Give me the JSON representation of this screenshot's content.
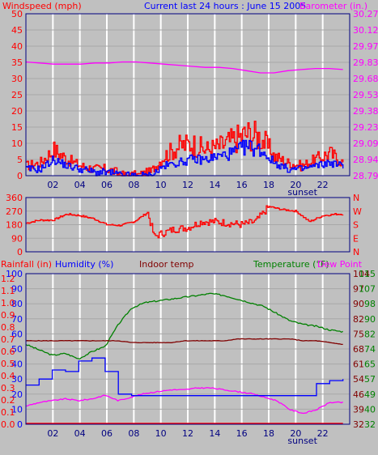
{
  "colors": {
    "background": "#c0c0c0",
    "plot_bg": "#c0c0c0",
    "frame": "#000080",
    "grid": "#ffffff",
    "wind": "#ff0000",
    "gust": "#0000ff",
    "barometer": "#ff00ff",
    "direction": "#ff0000",
    "rain": "#ff0000",
    "humidity": "#0000ff",
    "indoor": "#800000",
    "temperature": "#008000",
    "dewpoint": "#ff00ff"
  },
  "chart_data": [
    {
      "type": "line",
      "title": "Current last 24 hours : June 15 2005",
      "ylabel": "Windspeed (mph)",
      "y2label": "Barometer (in.)",
      "ylim": [
        0,
        50
      ],
      "y2lim": [
        28.79,
        30.27
      ],
      "yticks": [
        "50",
        "45",
        "40",
        "35",
        "30",
        "25",
        "20",
        "15",
        "10",
        "5",
        "0"
      ],
      "y2ticks": [
        "30.27",
        "30.12",
        "29.97",
        "29.83",
        "29.68",
        "29.53",
        "29.38",
        "29.23",
        "29.09",
        "28.94",
        "28.79"
      ],
      "x": [
        0,
        1,
        2,
        3,
        4,
        5,
        6,
        7,
        8,
        9,
        10,
        11,
        12,
        13,
        14,
        15,
        16,
        17,
        18,
        19,
        20,
        21,
        22,
        23
      ],
      "xticks": [
        "02",
        "04",
        "06",
        "08",
        "10",
        "12",
        "14",
        "16",
        "18",
        "20",
        "22"
      ],
      "xtick_hours": [
        2,
        4,
        6,
        8,
        10,
        12,
        14,
        16,
        18,
        20,
        22
      ],
      "sunset_label": "sunset",
      "grid": true,
      "series": [
        {
          "role": "wind",
          "values": [
            3,
            4,
            8,
            5,
            3,
            2,
            2,
            0,
            0,
            1,
            6,
            9,
            10,
            8,
            9,
            11,
            13,
            12,
            6,
            4,
            3,
            5,
            7,
            4
          ]
        },
        {
          "role": "gust",
          "values": [
            2,
            2,
            5,
            3,
            2,
            1,
            1,
            0,
            0,
            0,
            3,
            4,
            5,
            5,
            6,
            7,
            9,
            8,
            4,
            2,
            2,
            3,
            4,
            3
          ]
        },
        {
          "role": "barometer",
          "values": [
            29.83,
            29.82,
            29.81,
            29.81,
            29.81,
            29.82,
            29.82,
            29.83,
            29.83,
            29.82,
            29.81,
            29.8,
            29.79,
            29.78,
            29.78,
            29.77,
            29.75,
            29.73,
            29.73,
            29.75,
            29.76,
            29.77,
            29.77,
            29.76
          ]
        }
      ]
    },
    {
      "type": "line",
      "ylim": [
        0,
        360
      ],
      "yticks": [
        "360",
        "270",
        "180",
        "90",
        "0"
      ],
      "y2ticks": [
        "N",
        "W",
        "S",
        "E",
        "N"
      ],
      "xticks": [
        "02",
        "04",
        "06",
        "08",
        "10",
        "12",
        "14",
        "16",
        "18",
        "20",
        "22"
      ],
      "sunset_label": "sunset",
      "grid": true,
      "series": [
        {
          "role": "direction",
          "x": [
            0,
            1,
            2,
            3,
            4,
            5,
            6,
            7,
            8,
            9,
            9.5,
            10,
            11,
            12,
            13,
            14,
            15,
            16,
            17,
            18,
            19,
            20,
            21,
            22,
            23
          ],
          "values": [
            190,
            210,
            210,
            250,
            240,
            220,
            180,
            175,
            200,
            260,
            100,
            120,
            150,
            160,
            200,
            200,
            190,
            180,
            200,
            300,
            280,
            270,
            200,
            240,
            250
          ]
        }
      ]
    },
    {
      "type": "line",
      "legend": [
        "Rainfall (in)",
        "Humidity (%)",
        "Indoor temp",
        "Temperature (°F)",
        "Dew Point"
      ],
      "ylim": [
        0,
        100
      ],
      "y2lim": [
        32,
        115
      ],
      "yticks_humidity": [
        "100",
        "90",
        "80",
        "70",
        "60",
        "50",
        "40",
        "30",
        "20",
        "10",
        "0"
      ],
      "yticks_rain": [
        "1.2",
        "1.1",
        "1.0",
        "0.9",
        "0.8",
        "0.7",
        "0.6",
        "0.5",
        "0.4",
        "0.3",
        "0.2",
        "0.1",
        "0.0"
      ],
      "yticks_temp_inner": [
        "104",
        "97",
        "90",
        "82",
        "75",
        "68",
        "61",
        "54",
        "46",
        "39",
        "32"
      ],
      "yticks_temp_outer": [
        "115",
        "107",
        "98",
        "90",
        "82",
        "74",
        "65",
        "57",
        "49",
        "40",
        "32"
      ],
      "x": [
        0,
        1,
        2,
        3,
        4,
        5,
        6,
        7,
        8,
        9,
        10,
        11,
        12,
        13,
        14,
        15,
        16,
        17,
        18,
        19,
        20,
        21,
        22,
        23,
        24
      ],
      "xticks": [
        "02",
        "04",
        "06",
        "08",
        "10",
        "12",
        "14",
        "16",
        "18",
        "20",
        "22"
      ],
      "sunset_label": "sunset",
      "grid": true,
      "series": [
        {
          "role": "temperature",
          "values": [
            76,
            73,
            70,
            71,
            68,
            72,
            75,
            87,
            96,
            99,
            100,
            101,
            102,
            103,
            104,
            103,
            101,
            99,
            97,
            93,
            89,
            87,
            86,
            84,
            83
          ]
        },
        {
          "role": "humidity",
          "values": [
            26,
            30,
            36,
            35,
            42,
            44,
            35,
            20,
            19,
            19,
            19,
            19,
            19,
            19,
            19,
            19,
            19,
            19,
            19,
            19,
            19,
            19,
            27,
            29,
            30
          ]
        },
        {
          "role": "indoor",
          "values": [
            78,
            78,
            78,
            78,
            78,
            78,
            78,
            78,
            77,
            77,
            77,
            77,
            78,
            78,
            78,
            78,
            79,
            79,
            79,
            79,
            79,
            78,
            78,
            77,
            76
          ]
        },
        {
          "role": "dewpoint",
          "values": [
            42,
            44,
            45,
            46,
            45,
            46,
            48,
            45,
            47,
            49,
            50,
            51,
            51,
            52,
            52,
            51,
            50,
            49,
            47,
            45,
            40,
            38,
            40,
            44,
            44
          ]
        },
        {
          "role": "rain",
          "values": [
            0,
            0,
            0,
            0,
            0,
            0,
            0,
            0,
            0,
            0,
            0,
            0,
            0,
            0,
            0,
            0,
            0,
            0,
            0,
            0,
            0,
            0,
            0,
            0,
            0
          ]
        }
      ]
    }
  ]
}
